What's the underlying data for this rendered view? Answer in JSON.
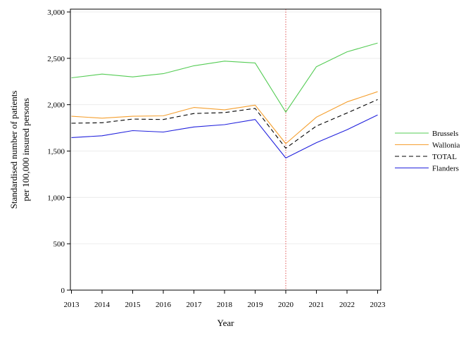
{
  "chart_data": {
    "type": "line",
    "xlabel": "Year",
    "ylabel_line1": "Standardised number of patients",
    "ylabel_line2": "per 100,000 insured persons",
    "x": [
      2013,
      2014,
      2015,
      2016,
      2017,
      2018,
      2019,
      2020,
      2021,
      2022,
      2023
    ],
    "ylim": [
      0,
      3000
    ],
    "yticks": [
      0,
      500,
      1000,
      1500,
      2000,
      2500,
      3000
    ],
    "ytick_labels": [
      "0",
      "500",
      "1,000",
      "1,500",
      "2,000",
      "2,500",
      "3,000"
    ],
    "grid": "horizontal",
    "legend_position": "right",
    "reference_line": {
      "x": 2020,
      "color": "#e05555",
      "style": "dotted"
    },
    "series": [
      {
        "name": "Brussels",
        "color": "#55cc55",
        "dash": "solid",
        "values": [
          2290,
          2330,
          2300,
          2335,
          2420,
          2470,
          2450,
          1920,
          2410,
          2570,
          2665
        ]
      },
      {
        "name": "Wallonia",
        "color": "#f5a030",
        "dash": "solid",
        "values": [
          1875,
          1855,
          1875,
          1880,
          1970,
          1945,
          1995,
          1580,
          1865,
          2030,
          2140
        ]
      },
      {
        "name": "TOTAL",
        "color": "#000000",
        "dash": "dashed",
        "values": [
          1800,
          1805,
          1845,
          1840,
          1905,
          1915,
          1960,
          1530,
          1770,
          1910,
          2055
        ]
      },
      {
        "name": "Flanders",
        "color": "#2222dd",
        "dash": "solid",
        "values": [
          1645,
          1665,
          1720,
          1705,
          1760,
          1785,
          1840,
          1425,
          1590,
          1730,
          1890
        ]
      }
    ]
  }
}
